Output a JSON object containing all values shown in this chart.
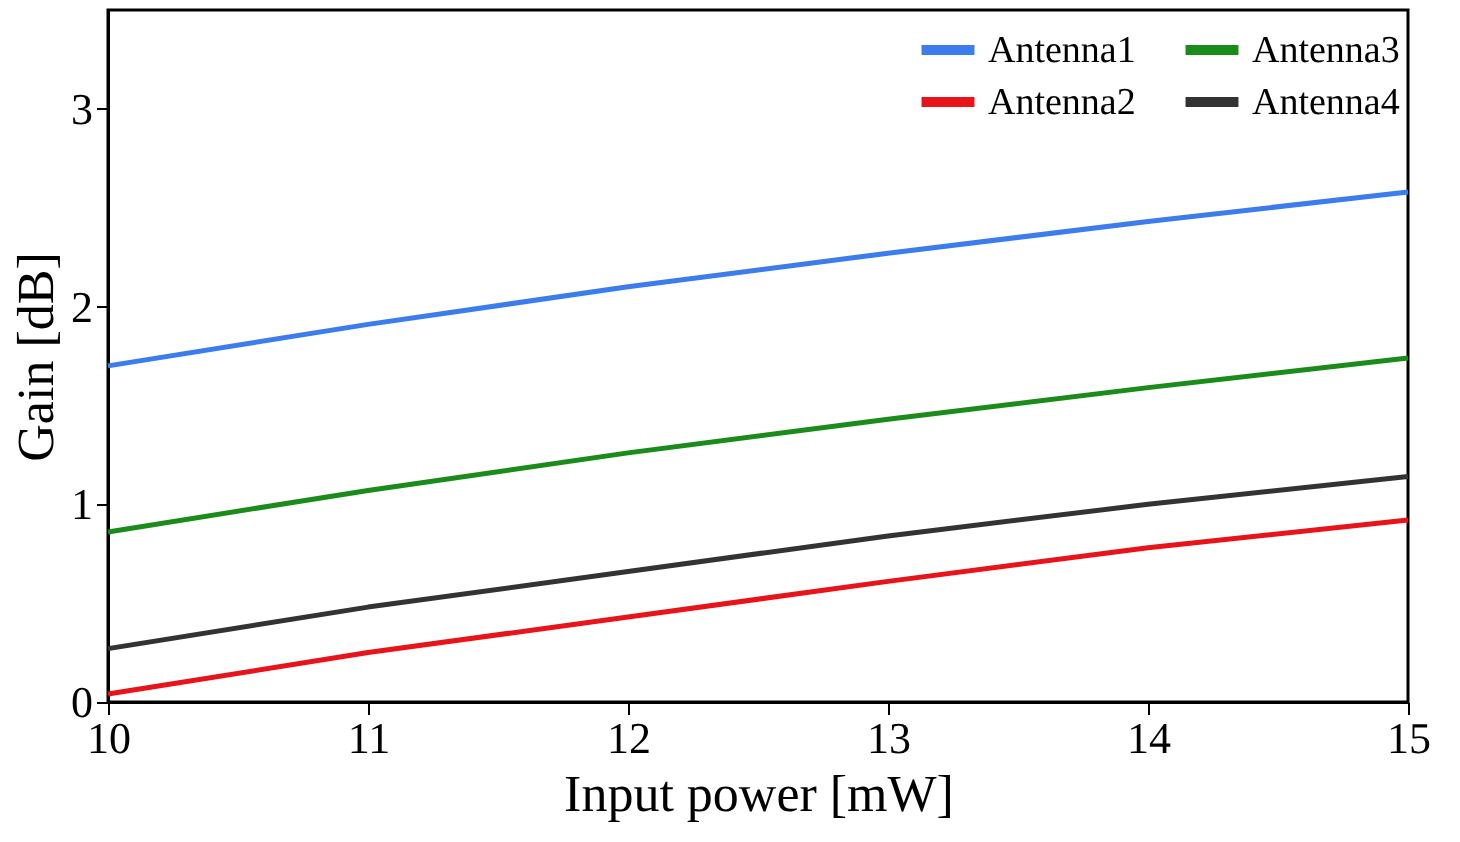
{
  "chart_data": {
    "type": "line",
    "xlabel": "Input power [mW]",
    "ylabel": "Gain [dB]",
    "x": [
      10,
      11,
      12,
      13,
      14,
      15
    ],
    "series": [
      {
        "name": "Antenna1",
        "color": "#3b7ded",
        "values": [
          1.7,
          1.91,
          2.1,
          2.27,
          2.43,
          2.58
        ]
      },
      {
        "name": "Antenna2",
        "color": "#e8141a",
        "values": [
          0.04,
          0.25,
          0.43,
          0.61,
          0.78,
          0.92
        ]
      },
      {
        "name": "Antenna3",
        "color": "#1a8c1a",
        "values": [
          0.86,
          1.07,
          1.26,
          1.43,
          1.59,
          1.74
        ]
      },
      {
        "name": "Antenna4",
        "color": "#333333",
        "values": [
          0.27,
          0.48,
          0.66,
          0.84,
          1.0,
          1.14
        ]
      }
    ],
    "xlim": [
      10,
      15
    ],
    "ylim": [
      0,
      3.5
    ],
    "xticks": [
      10,
      11,
      12,
      13,
      14,
      15
    ],
    "yticks": [
      0,
      1,
      2,
      3
    ],
    "grid": false,
    "legend": "top right",
    "marker": "none",
    "line_style": "solid"
  }
}
